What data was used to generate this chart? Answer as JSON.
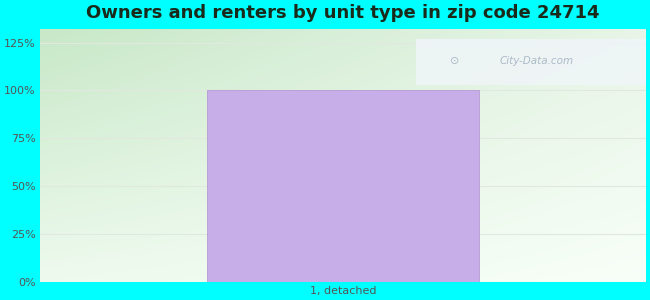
{
  "title": "Owners and renters by unit type in zip code 24714",
  "categories": [
    "1, detached"
  ],
  "values": [
    100
  ],
  "bar_color": "#c8aee8",
  "bar_edge_color": "#b090d0",
  "outer_bg_color": "#00ffff",
  "plot_bg_top_left": "#c8e8c8",
  "plot_bg_top_right": "#e8f5e8",
  "plot_bg_bottom_left": "#e8f8e8",
  "plot_bg_bottom_right": "#f8fff8",
  "yticks": [
    0,
    25,
    50,
    75,
    100,
    125
  ],
  "ytick_labels": [
    "0%",
    "25%",
    "50%",
    "75%",
    "100%",
    "125%"
  ],
  "ylim": [
    0,
    132
  ],
  "title_fontsize": 13,
  "title_color": "#1a2a1a",
  "tick_label_color": "#555555",
  "grid_color": "#e0e8e0",
  "watermark_text": "City-Data.com",
  "watermark_color": "#a0b0c0",
  "watermark_alpha": 0.85
}
